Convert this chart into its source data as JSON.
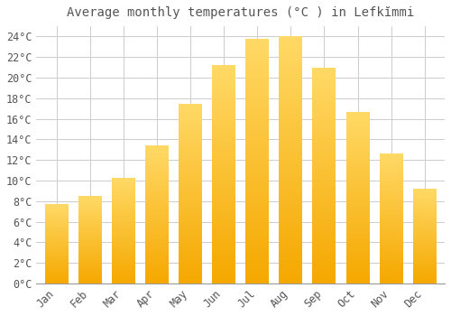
{
  "title": "Average monthly temperatures (°C ) in Lefkĭmmi",
  "months": [
    "Jan",
    "Feb",
    "Mar",
    "Apr",
    "May",
    "Jun",
    "Jul",
    "Aug",
    "Sep",
    "Oct",
    "Nov",
    "Dec"
  ],
  "values": [
    7.7,
    8.5,
    10.3,
    13.4,
    17.5,
    21.2,
    23.8,
    24.0,
    21.0,
    16.7,
    12.6,
    9.2
  ],
  "bar_color_bottom": "#F5A800",
  "bar_color_top": "#FFD966",
  "background_color": "#FFFFFF",
  "grid_color": "#CCCCCC",
  "text_color": "#555555",
  "ylim": [
    0,
    25
  ],
  "ytick_max": 24,
  "ytick_step": 2,
  "title_fontsize": 10,
  "tick_fontsize": 8.5,
  "font_family": "monospace"
}
